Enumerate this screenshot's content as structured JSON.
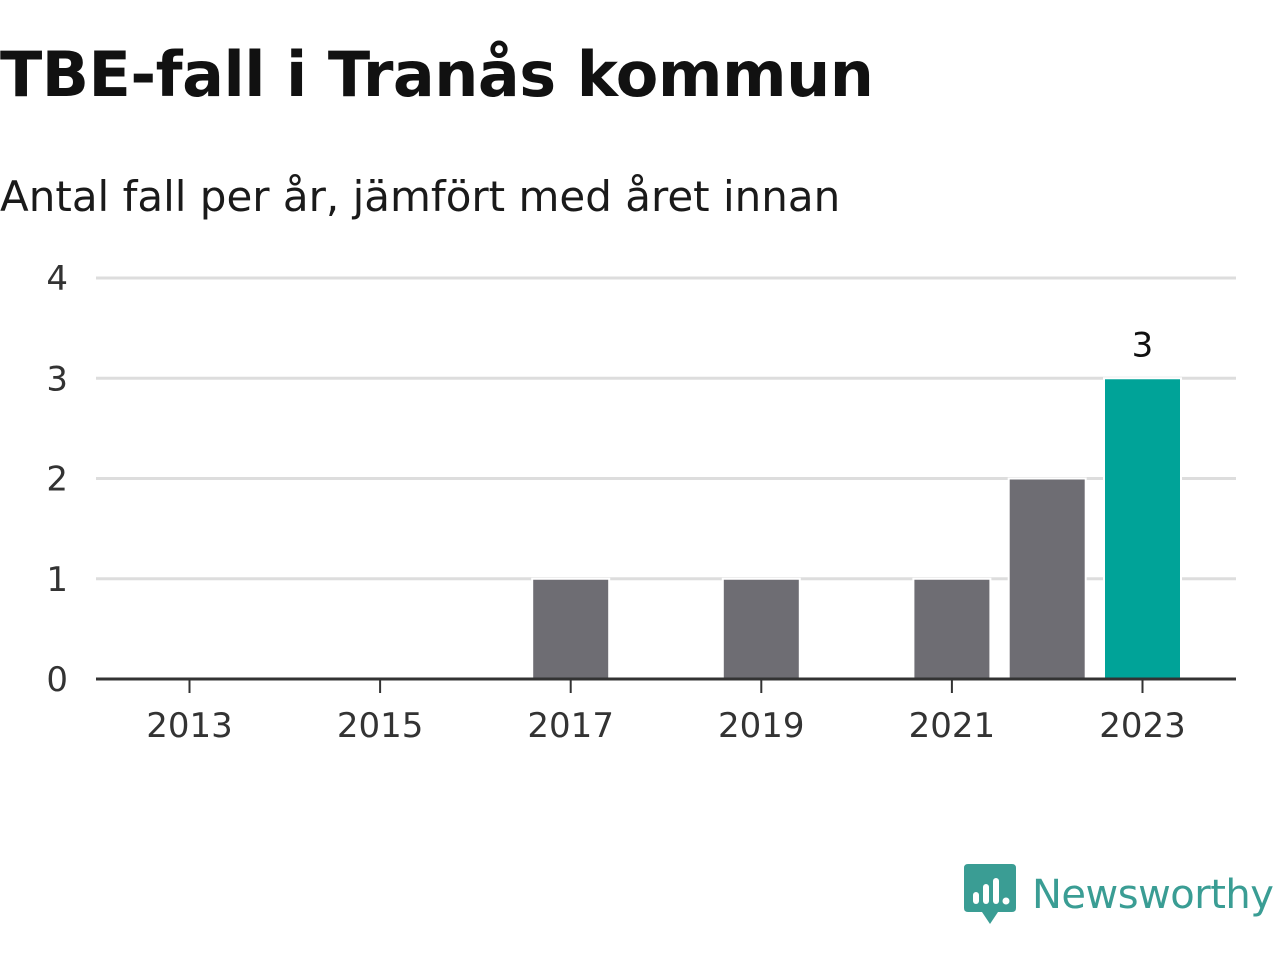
{
  "colors": {
    "bar_default": "#6e6d73",
    "bar_highlight": "#00a398",
    "grid": "#dddddd",
    "axis": "#333333",
    "brand": "#3a9d94"
  },
  "logo": {
    "icon": "newsworthy-chart-bubble-icon",
    "text": "Newsworthy"
  },
  "chart_data": {
    "type": "bar",
    "title": "TBE-fall i Tranås kommun",
    "subtitle": "Antal fall per år, jämfört med året innan",
    "xlabel": "",
    "ylabel": "",
    "categories": [
      "2013",
      "2014",
      "2015",
      "2016",
      "2017",
      "2018",
      "2019",
      "2020",
      "2021",
      "2022",
      "2023"
    ],
    "values": [
      0,
      0,
      0,
      0,
      1,
      0,
      1,
      0,
      1,
      2,
      3
    ],
    "highlight_index": 10,
    "data_labels": [
      {
        "index": 10,
        "text": "3"
      }
    ],
    "x_tick_labels": [
      "2013",
      "2015",
      "2017",
      "2019",
      "2021",
      "2023"
    ],
    "y_ticks": [
      0,
      1,
      2,
      3,
      4
    ],
    "ylim": [
      0,
      4
    ],
    "grid": true,
    "legend": "none"
  }
}
